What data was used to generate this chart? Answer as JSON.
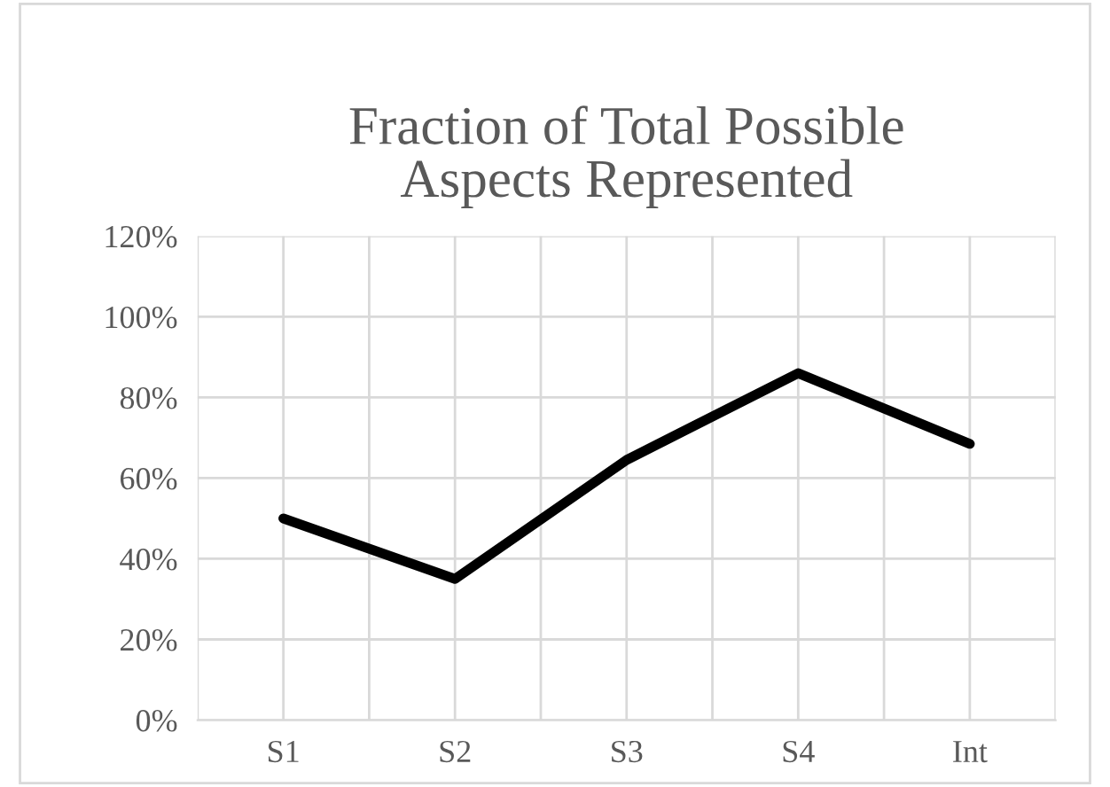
{
  "chart_data": {
    "type": "line",
    "title": "Fraction of Total Possible\nAspects Represented",
    "categories": [
      "S1",
      "S2",
      "S3",
      "S4",
      "Int"
    ],
    "series": [
      {
        "color": "#000000",
        "values": [
          50,
          35,
          64.5,
          86,
          68.5
        ]
      }
    ],
    "ylim": [
      0,
      120
    ],
    "yticks": [
      {
        "value": 0,
        "label": "0%"
      },
      {
        "value": 20,
        "label": "20%"
      },
      {
        "value": 40,
        "label": "40%"
      },
      {
        "value": 60,
        "label": "60%"
      },
      {
        "value": 80,
        "label": "80%"
      },
      {
        "value": 100,
        "label": "100%"
      },
      {
        "value": 120,
        "label": "120%"
      }
    ],
    "grid": true,
    "legend": false,
    "marker": "none",
    "line_style": "solid"
  }
}
